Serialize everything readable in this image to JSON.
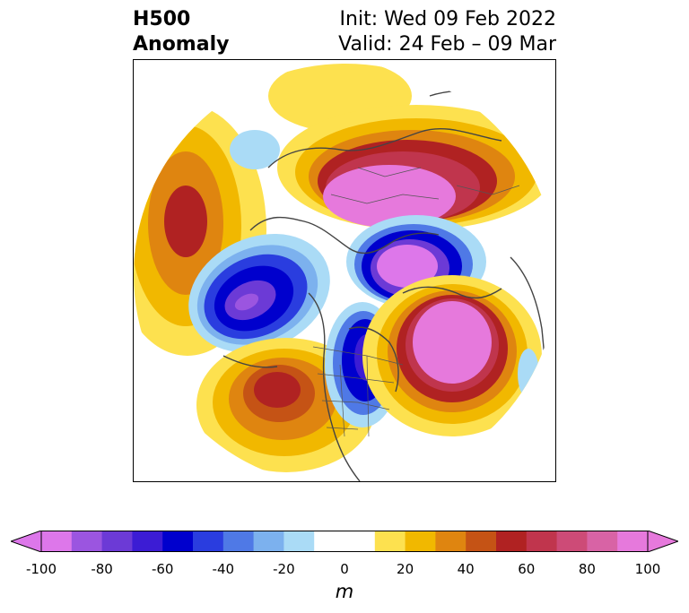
{
  "header": {
    "title_line1": "H500",
    "title_line2": "Anomaly",
    "init_text": "Init: Wed 09 Feb 2022",
    "valid_text": "Valid: 24 Feb – 09 Mar"
  },
  "map": {
    "projection": "north-polar-stereographic",
    "variable": "500 hPa geopotential height anomaly",
    "features": [
      {
        "name": "north-pacific-positive-anomaly",
        "sign": "positive",
        "peak_m": 60
      },
      {
        "name": "gulf-of-alaska-negative-anomaly",
        "sign": "negative",
        "peak_m": -70
      },
      {
        "name": "western-us-positive-anomaly",
        "sign": "positive",
        "peak_m": 60
      },
      {
        "name": "eastern-north-america-negative-anomaly",
        "sign": "negative",
        "peak_m": -60
      },
      {
        "name": "north-atlantic-positive-anomaly",
        "sign": "positive",
        "peak_m": 100
      },
      {
        "name": "greenland-barents-negative-anomaly",
        "sign": "negative",
        "peak_m": -90
      },
      {
        "name": "eurasia-positive-anomaly",
        "sign": "positive",
        "peak_m": 100
      }
    ]
  },
  "colorbar": {
    "unit": "m",
    "min": -100,
    "max": 100,
    "step": 10,
    "extend": "both",
    "colors": [
      "#dd77ea",
      "#9b55e0",
      "#6c3ad6",
      "#3c1cd4",
      "#0000cd",
      "#2a3ddf",
      "#4f79e6",
      "#7cb1ee",
      "#aadbf6",
      "#ffffff",
      "#ffffff",
      "#fde14f",
      "#f1b800",
      "#df8510",
      "#c55315",
      "#b02222",
      "#c0354d",
      "#cd4b77",
      "#d863a5",
      "#e679dc"
    ],
    "extend_low_color": "#dd77ea",
    "extend_high_color": "#e679dc",
    "tick_labels": [
      "-100",
      "-80",
      "-60",
      "-40",
      "-20",
      "0",
      "20",
      "40",
      "60",
      "80",
      "100"
    ]
  }
}
